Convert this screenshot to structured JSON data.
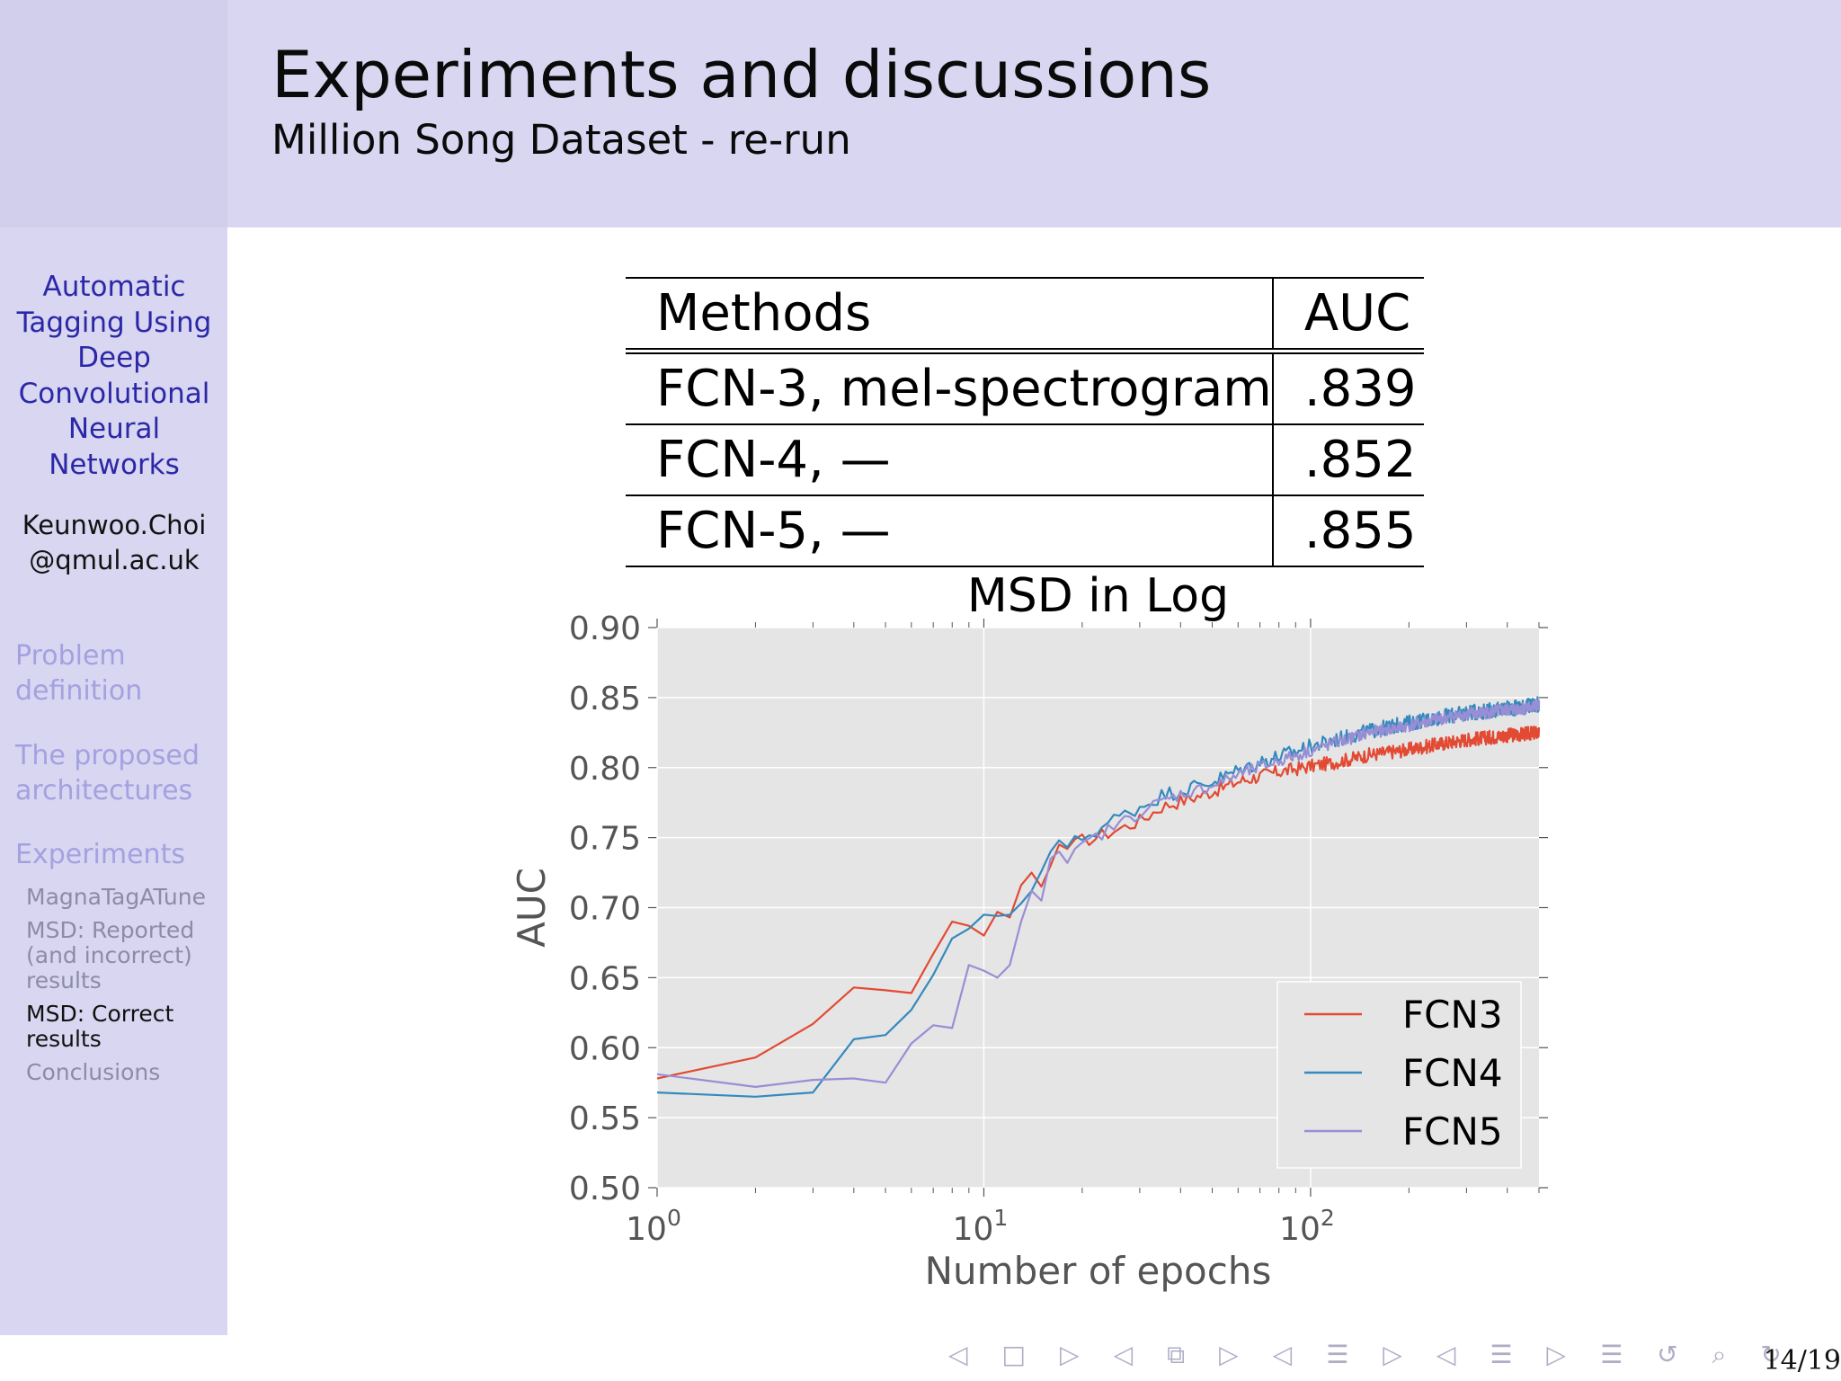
{
  "header": {
    "title": "Experiments and discussions",
    "subtitle": "Million Song Dataset - re-run"
  },
  "sidebar": {
    "talk_title": [
      "Automatic",
      "Tagging Using",
      "Deep",
      "Convolutional",
      "Neural",
      "Networks"
    ],
    "author": [
      "Keunwoo.Choi",
      "@qmul.ac.uk"
    ],
    "sections": [
      {
        "label": [
          "Problem",
          "definition"
        ]
      },
      {
        "label": [
          "The proposed",
          "architectures"
        ]
      },
      {
        "label": [
          "Experiments"
        ]
      }
    ],
    "subsections": [
      {
        "label": [
          "MagnaTagATune"
        ],
        "active": false
      },
      {
        "label": [
          "MSD: Reported",
          "(and incorrect)",
          "results"
        ],
        "active": false
      },
      {
        "label": [
          "MSD: Correct",
          "results"
        ],
        "active": true
      },
      {
        "label": [
          "Conclusions"
        ],
        "active": false
      }
    ]
  },
  "table": {
    "headers": [
      "Methods",
      "AUC"
    ],
    "rows": [
      [
        "FCN-3, mel-spectrogram",
        ".839"
      ],
      [
        "FCN-4, —",
        ".852"
      ],
      [
        "FCN-5, —",
        ".855"
      ]
    ]
  },
  "chart_data": {
    "type": "line",
    "title": "MSD in Log",
    "xlabel": "Number of epochs",
    "ylabel": "AUC",
    "xscale": "log",
    "xlim": [
      1,
      500
    ],
    "ylim": [
      0.5,
      0.9
    ],
    "yticks": [
      "0.50",
      "0.55",
      "0.60",
      "0.65",
      "0.70",
      "0.75",
      "0.80",
      "0.85",
      "0.90"
    ],
    "xticks": [
      {
        "base": "10",
        "exp": "0"
      },
      {
        "base": "10",
        "exp": "1"
      },
      {
        "base": "10",
        "exp": "2"
      }
    ],
    "grid": true,
    "legend_position": "bottom-right",
    "colors": {
      "FCN3": "#e24a33",
      "FCN4": "#348abd",
      "FCN5": "#988ed5",
      "background": "#e5e5e5"
    },
    "series": [
      {
        "name": "FCN3",
        "points": [
          [
            1,
            0.578
          ],
          [
            2,
            0.593
          ],
          [
            3,
            0.617
          ],
          [
            4,
            0.643
          ],
          [
            5,
            0.641
          ],
          [
            6,
            0.639
          ],
          [
            7,
            0.667
          ],
          [
            8,
            0.69
          ],
          [
            9,
            0.687
          ],
          [
            10,
            0.68
          ],
          [
            11,
            0.697
          ],
          [
            12,
            0.693
          ],
          [
            13,
            0.716
          ],
          [
            14,
            0.725
          ],
          [
            15,
            0.715
          ],
          [
            16,
            0.73
          ],
          [
            17,
            0.745
          ],
          [
            18,
            0.742
          ],
          [
            20,
            0.748
          ],
          [
            22,
            0.75
          ],
          [
            25,
            0.755
          ],
          [
            30,
            0.762
          ],
          [
            35,
            0.772
          ],
          [
            40,
            0.776
          ],
          [
            50,
            0.783
          ],
          [
            60,
            0.79
          ],
          [
            70,
            0.794
          ],
          [
            80,
            0.797
          ],
          [
            100,
            0.801
          ],
          [
            120,
            0.804
          ],
          [
            150,
            0.809
          ],
          [
            200,
            0.813
          ],
          [
            250,
            0.817
          ],
          [
            300,
            0.82
          ],
          [
            400,
            0.823
          ],
          [
            500,
            0.825
          ]
        ],
        "noise_after": 18,
        "noise_amp": 0.005
      },
      {
        "name": "FCN4",
        "points": [
          [
            1,
            0.568
          ],
          [
            2,
            0.565
          ],
          [
            3,
            0.568
          ],
          [
            4,
            0.606
          ],
          [
            5,
            0.609
          ],
          [
            6,
            0.627
          ],
          [
            7,
            0.652
          ],
          [
            8,
            0.678
          ],
          [
            9,
            0.685
          ],
          [
            10,
            0.695
          ],
          [
            11,
            0.694
          ],
          [
            12,
            0.695
          ],
          [
            13,
            0.703
          ],
          [
            14,
            0.712
          ],
          [
            15,
            0.726
          ],
          [
            16,
            0.74
          ],
          [
            17,
            0.748
          ],
          [
            18,
            0.743
          ],
          [
            20,
            0.75
          ],
          [
            22,
            0.755
          ],
          [
            25,
            0.763
          ],
          [
            30,
            0.772
          ],
          [
            35,
            0.78
          ],
          [
            40,
            0.784
          ],
          [
            50,
            0.79
          ],
          [
            60,
            0.798
          ],
          [
            70,
            0.804
          ],
          [
            80,
            0.808
          ],
          [
            100,
            0.815
          ],
          [
            120,
            0.82
          ],
          [
            150,
            0.826
          ],
          [
            200,
            0.832
          ],
          [
            250,
            0.836
          ],
          [
            300,
            0.839
          ],
          [
            400,
            0.842
          ],
          [
            500,
            0.845
          ]
        ],
        "noise_after": 18,
        "noise_amp": 0.0055
      },
      {
        "name": "FCN5",
        "points": [
          [
            1,
            0.581
          ],
          [
            2,
            0.572
          ],
          [
            3,
            0.577
          ],
          [
            4,
            0.578
          ],
          [
            5,
            0.575
          ],
          [
            6,
            0.603
          ],
          [
            7,
            0.616
          ],
          [
            8,
            0.614
          ],
          [
            9,
            0.659
          ],
          [
            10,
            0.655
          ],
          [
            11,
            0.65
          ],
          [
            12,
            0.659
          ],
          [
            13,
            0.69
          ],
          [
            14,
            0.712
          ],
          [
            15,
            0.705
          ],
          [
            16,
            0.735
          ],
          [
            17,
            0.74
          ],
          [
            18,
            0.732
          ],
          [
            20,
            0.744
          ],
          [
            22,
            0.75
          ],
          [
            25,
            0.758
          ],
          [
            30,
            0.768
          ],
          [
            35,
            0.776
          ],
          [
            40,
            0.781
          ],
          [
            50,
            0.787
          ],
          [
            60,
            0.795
          ],
          [
            70,
            0.8
          ],
          [
            80,
            0.805
          ],
          [
            100,
            0.812
          ],
          [
            120,
            0.818
          ],
          [
            150,
            0.825
          ],
          [
            200,
            0.83
          ],
          [
            250,
            0.835
          ],
          [
            300,
            0.838
          ],
          [
            400,
            0.841
          ],
          [
            500,
            0.844
          ]
        ],
        "noise_after": 18,
        "noise_amp": 0.0045
      }
    ]
  },
  "nav": {
    "icons": [
      "◁",
      "□",
      "▷",
      "◁",
      "⧉",
      "▷",
      "◁",
      "☰",
      "▷",
      "◁",
      "☰",
      "▷",
      "☰",
      "↺",
      "⌕",
      "↻"
    ],
    "page": "14/19"
  }
}
